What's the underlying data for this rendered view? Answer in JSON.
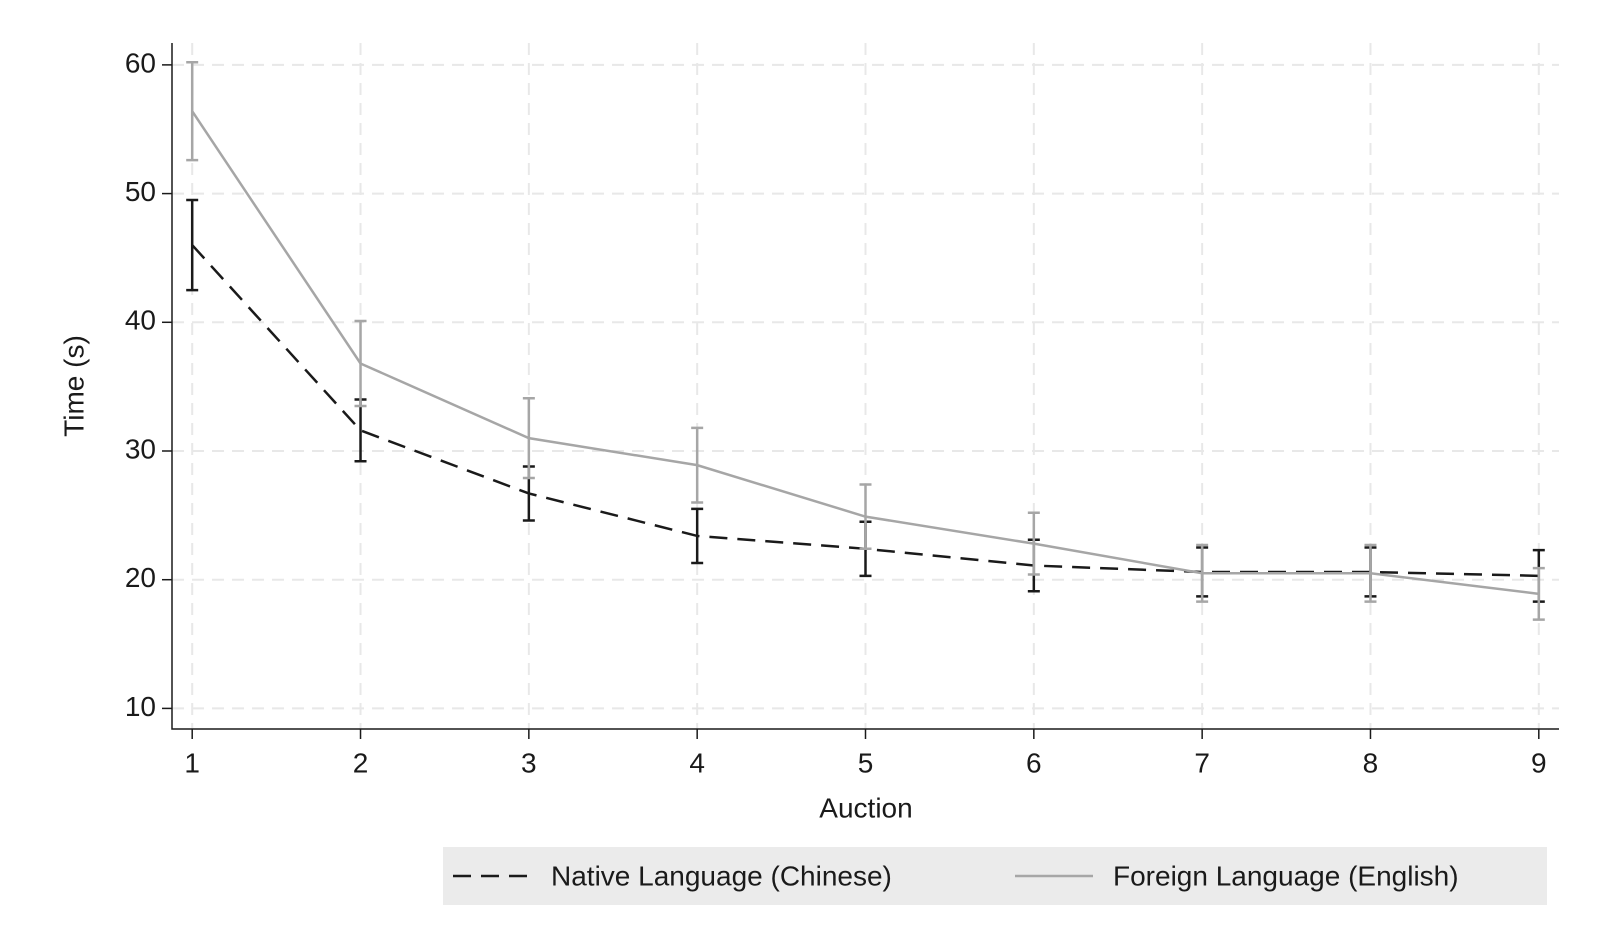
{
  "chart_data": {
    "type": "line",
    "x_label": "Auction",
    "y_label": "Time (s)",
    "x": [
      1,
      2,
      3,
      4,
      5,
      6,
      7,
      8,
      9
    ],
    "series": [
      {
        "name": "Native Language (Chinese)",
        "color": "#1a1a1a",
        "line_style": "dashed",
        "values": [
          46.0,
          31.6,
          26.7,
          23.4,
          22.4,
          21.1,
          20.6,
          20.6,
          20.3
        ],
        "errors": [
          3.5,
          2.4,
          2.1,
          2.1,
          2.1,
          2.0,
          1.9,
          1.9,
          2.0
        ]
      },
      {
        "name": "Foreign Language (English)",
        "color": "#a6a6a6",
        "line_style": "solid",
        "values": [
          56.4,
          36.8,
          31.0,
          28.9,
          24.9,
          22.8,
          20.5,
          20.5,
          18.9
        ],
        "errors": [
          3.8,
          3.3,
          3.1,
          2.9,
          2.5,
          2.4,
          2.2,
          2.2,
          2.0
        ]
      }
    ],
    "xlim": [
      0.88,
      9.12
    ],
    "ylim": [
      8.4,
      61.7
    ],
    "xticks": [
      1,
      2,
      3,
      4,
      5,
      6,
      7,
      8,
      9
    ],
    "yticks": [
      10,
      20,
      30,
      40,
      50,
      60
    ],
    "grid": true,
    "legend": "bottom"
  }
}
